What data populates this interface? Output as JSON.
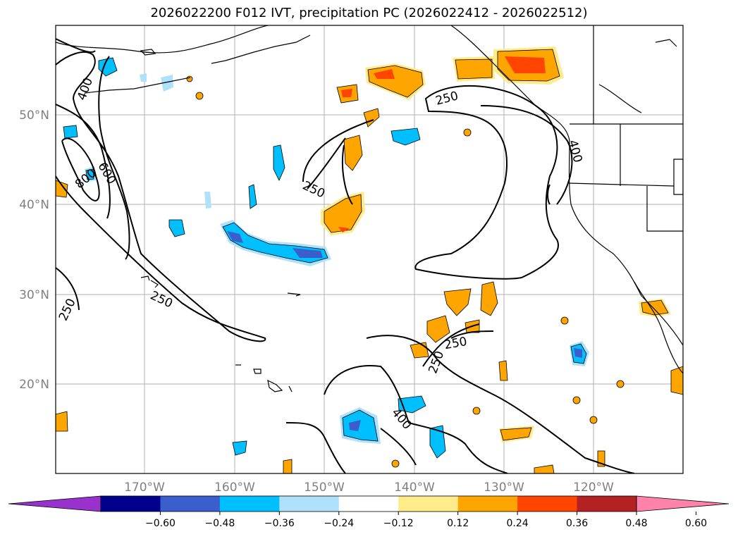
{
  "title": "2026022200 F012 IVT, precipitation PC (2026022412 - 2026022512)",
  "lat_labels": [
    "50°N",
    "40°N",
    "30°N",
    "20°N"
  ],
  "lon_labels": [
    "170°W",
    "160°W",
    "150°W",
    "140°W",
    "130°W",
    "120°W"
  ],
  "ivt_contour_labels": [
    "400",
    "800",
    "600",
    "250",
    "250",
    "250",
    "250",
    "250",
    "400",
    "250",
    "400"
  ],
  "colorbar": {
    "ticks": [
      "−0.60",
      "−0.48",
      "−0.36",
      "−0.24",
      "−0.12",
      "0.12",
      "0.24",
      "0.36",
      "0.48",
      "0.60"
    ],
    "colors": [
      "#9932cc",
      "#00008b",
      "#3a5fcd",
      "#00bfff",
      "#afe1fb",
      "#ffffff",
      "#ffeb8a",
      "#ffa500",
      "#ff4500",
      "#b22222",
      "#ff82ab"
    ]
  }
}
